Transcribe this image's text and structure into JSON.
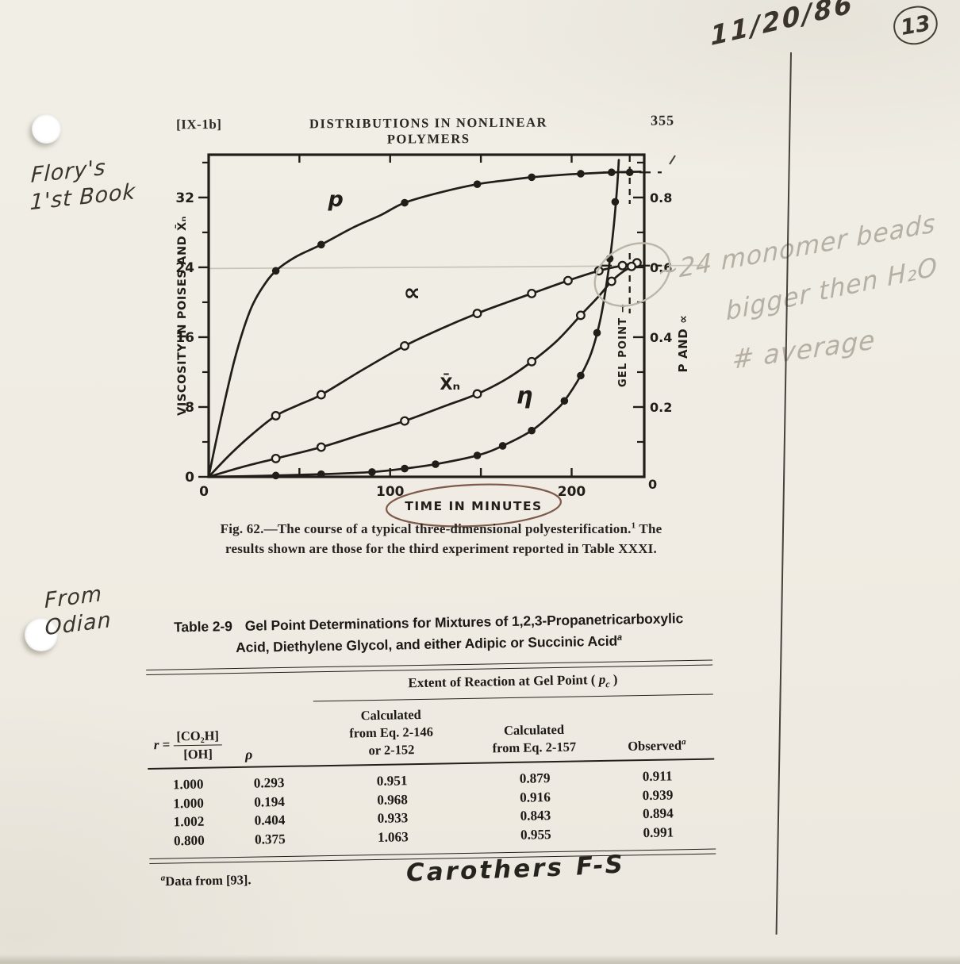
{
  "header": {
    "section": "[IX-1b]",
    "title": "DISTRIBUTIONS IN NONLINEAR POLYMERS",
    "page_number": "355"
  },
  "figure": {
    "caption_l1a": "Fig. 62.—The course of a typical three-dimensional polyesterification.",
    "caption_sup": "1",
    "caption_l1b": " The",
    "caption_l2": "results shown are those for the third experiment reported in Table XXXI."
  },
  "chart_data": {
    "type": "line",
    "xlabel": "TIME IN MINUTES",
    "ylabel_left": "VISCOSITY IN POISES AND X̄ₙ",
    "ylabel_right": "P AND ∝",
    "gel_point_label": "GEL POINT →",
    "xlim": [
      0,
      240
    ],
    "ylim_left": [
      0,
      36.9
    ],
    "ylim_right": [
      0,
      0.9225
    ],
    "x_major_ticks": [
      50,
      100,
      150,
      200
    ],
    "x_tick_labels": [
      {
        "v": 0,
        "t": "0"
      },
      {
        "v": 100,
        "t": "100"
      },
      {
        "v": 200,
        "t": "200"
      }
    ],
    "x_right_zero_label": "0",
    "y_left_major": [
      [
        0,
        "0"
      ],
      [
        8,
        "8"
      ],
      [
        16,
        "16"
      ],
      [
        24,
        "24"
      ],
      [
        32,
        "32"
      ]
    ],
    "y_left_minor": [
      4,
      12,
      20,
      28,
      36
    ],
    "y_right_major": [
      [
        0.2,
        "0.2"
      ],
      [
        0.4,
        "0.4"
      ],
      [
        0.6,
        "0.6"
      ],
      [
        0.8,
        "0.8"
      ]
    ],
    "y_right_minor": [
      0.1,
      0.3,
      0.5,
      0.7,
      0.9
    ],
    "gel_time": 232,
    "pencil_guide_level_left": 24,
    "series": [
      {
        "name": "p",
        "axis": "right",
        "marker": "filled",
        "label": "p",
        "label_at": [
          70,
          0.775
        ],
        "points": [
          [
            37,
            0.59
          ],
          [
            62,
            0.665
          ],
          [
            108,
            0.785
          ],
          [
            148,
            0.838
          ],
          [
            178,
            0.858
          ],
          [
            205,
            0.868
          ],
          [
            222,
            0.872
          ],
          [
            232,
            0.872
          ]
        ],
        "curve": [
          [
            0,
            0
          ],
          [
            4,
            0.1
          ],
          [
            9,
            0.22
          ],
          [
            14,
            0.33
          ],
          [
            19,
            0.42
          ],
          [
            24,
            0.49
          ],
          [
            30,
            0.545
          ],
          [
            37,
            0.59
          ],
          [
            48,
            0.63
          ],
          [
            62,
            0.665
          ],
          [
            80,
            0.715
          ],
          [
            95,
            0.75
          ],
          [
            108,
            0.785
          ],
          [
            128,
            0.815
          ],
          [
            148,
            0.838
          ],
          [
            165,
            0.85
          ],
          [
            178,
            0.858
          ],
          [
            195,
            0.865
          ],
          [
            205,
            0.868
          ],
          [
            222,
            0.872
          ],
          [
            238,
            0.874
          ]
        ]
      },
      {
        "name": "alpha",
        "axis": "right",
        "marker": "open",
        "label": "∝",
        "label_at": [
          112,
          0.505
        ],
        "points": [
          [
            37,
            0.175
          ],
          [
            62,
            0.235
          ],
          [
            108,
            0.375
          ],
          [
            148,
            0.468
          ],
          [
            178,
            0.525
          ],
          [
            198,
            0.562
          ],
          [
            215,
            0.59
          ],
          [
            228,
            0.605
          ],
          [
            236,
            0.613
          ]
        ],
        "curve": [
          [
            0,
            0
          ],
          [
            12,
            0.065
          ],
          [
            24,
            0.122
          ],
          [
            37,
            0.175
          ],
          [
            50,
            0.207
          ],
          [
            62,
            0.235
          ],
          [
            85,
            0.307
          ],
          [
            108,
            0.375
          ],
          [
            128,
            0.424
          ],
          [
            148,
            0.468
          ],
          [
            164,
            0.499
          ],
          [
            178,
            0.525
          ],
          [
            198,
            0.562
          ],
          [
            215,
            0.59
          ],
          [
            228,
            0.605
          ],
          [
            238,
            0.615
          ]
        ]
      },
      {
        "name": "xn",
        "axis": "left",
        "marker": "open",
        "label": "X̄ₙ",
        "label_at": [
          133,
          10.0
        ],
        "points": [
          [
            37,
            2.1
          ],
          [
            62,
            3.4
          ],
          [
            108,
            6.4
          ],
          [
            148,
            9.5
          ],
          [
            178,
            13.2
          ],
          [
            205,
            18.5
          ],
          [
            222,
            22.4
          ],
          [
            233,
            24.1
          ]
        ],
        "curve": [
          [
            0,
            0
          ],
          [
            18,
            1.1
          ],
          [
            37,
            2.1
          ],
          [
            62,
            3.4
          ],
          [
            85,
            4.9
          ],
          [
            108,
            6.4
          ],
          [
            130,
            8.1
          ],
          [
            148,
            9.5
          ],
          [
            164,
            11.2
          ],
          [
            178,
            13.2
          ],
          [
            192,
            15.6
          ],
          [
            205,
            18.5
          ],
          [
            215,
            20.7
          ],
          [
            222,
            22.4
          ],
          [
            229,
            23.6
          ],
          [
            235,
            24.2
          ]
        ]
      },
      {
        "name": "eta",
        "axis": "left",
        "marker": "filled",
        "label": "η",
        "label_at": [
          174,
          8.4
        ],
        "points": [
          [
            37,
            0.15
          ],
          [
            62,
            0.3
          ],
          [
            90,
            0.55
          ],
          [
            108,
            0.95
          ],
          [
            125,
            1.45
          ],
          [
            148,
            2.45
          ],
          [
            162,
            3.55
          ],
          [
            178,
            5.3
          ],
          [
            196,
            8.7
          ],
          [
            205,
            11.6
          ],
          [
            214,
            16.5
          ],
          [
            221,
            25.0
          ],
          [
            224,
            31.5
          ]
        ],
        "curve": [
          [
            0,
            0
          ],
          [
            30,
            0.12
          ],
          [
            62,
            0.3
          ],
          [
            90,
            0.55
          ],
          [
            108,
            0.95
          ],
          [
            125,
            1.45
          ],
          [
            148,
            2.45
          ],
          [
            162,
            3.55
          ],
          [
            178,
            5.3
          ],
          [
            190,
            7.4
          ],
          [
            196,
            8.7
          ],
          [
            205,
            11.6
          ],
          [
            211,
            14.3
          ],
          [
            216,
            18.2
          ],
          [
            220,
            23.2
          ],
          [
            223,
            28.3
          ],
          [
            225,
            33.0
          ],
          [
            226,
            36.3
          ]
        ]
      }
    ]
  },
  "table": {
    "label": "Table 2-9",
    "title_l1": "Gel Point Determinations for Mixtures of 1,2,3-Propanetricarboxylic",
    "title_l2a": "Acid, Diethylene Glycol, and either Adipic or Succinic Acid",
    "title_sup": "a",
    "span_header_pre": "Extent of Reaction at Gel Point ( ",
    "span_header_var": "p",
    "span_header_sub": "c",
    "span_header_post": " )",
    "r_var": "r",
    "r_eq": " = ",
    "r_num": "[CO₂H]",
    "r_den": "[OH]",
    "rho": "ρ",
    "col3_lines": [
      "Calculated",
      "from Eq. 2-146",
      "or 2-152"
    ],
    "col4_lines": [
      "Calculated",
      "from Eq. 2-157"
    ],
    "col5_base": "Observed",
    "col5_sup": "a",
    "rows": [
      [
        "1.000",
        "0.293",
        "0.951",
        "0.879",
        "0.911"
      ],
      [
        "1.000",
        "0.194",
        "0.968",
        "0.916",
        "0.939"
      ],
      [
        "1.002",
        "0.404",
        "0.933",
        "0.843",
        "0.894"
      ],
      [
        "0.800",
        "0.375",
        "1.063",
        "0.955",
        "0.991"
      ]
    ],
    "footnote_sup": "a",
    "footnote_text": "Data from [93]."
  },
  "annotations": {
    "date": "11/20/86",
    "page_circle": "13",
    "flory_lines": [
      "Flory's",
      "1'st Book"
    ],
    "from_lines": [
      "From",
      "Odian"
    ],
    "pencil_lines": [
      "~24 monomer beads",
      "bigger then H₂O",
      "# average"
    ],
    "carothers": "Carothers",
    "fs": "F-S"
  }
}
